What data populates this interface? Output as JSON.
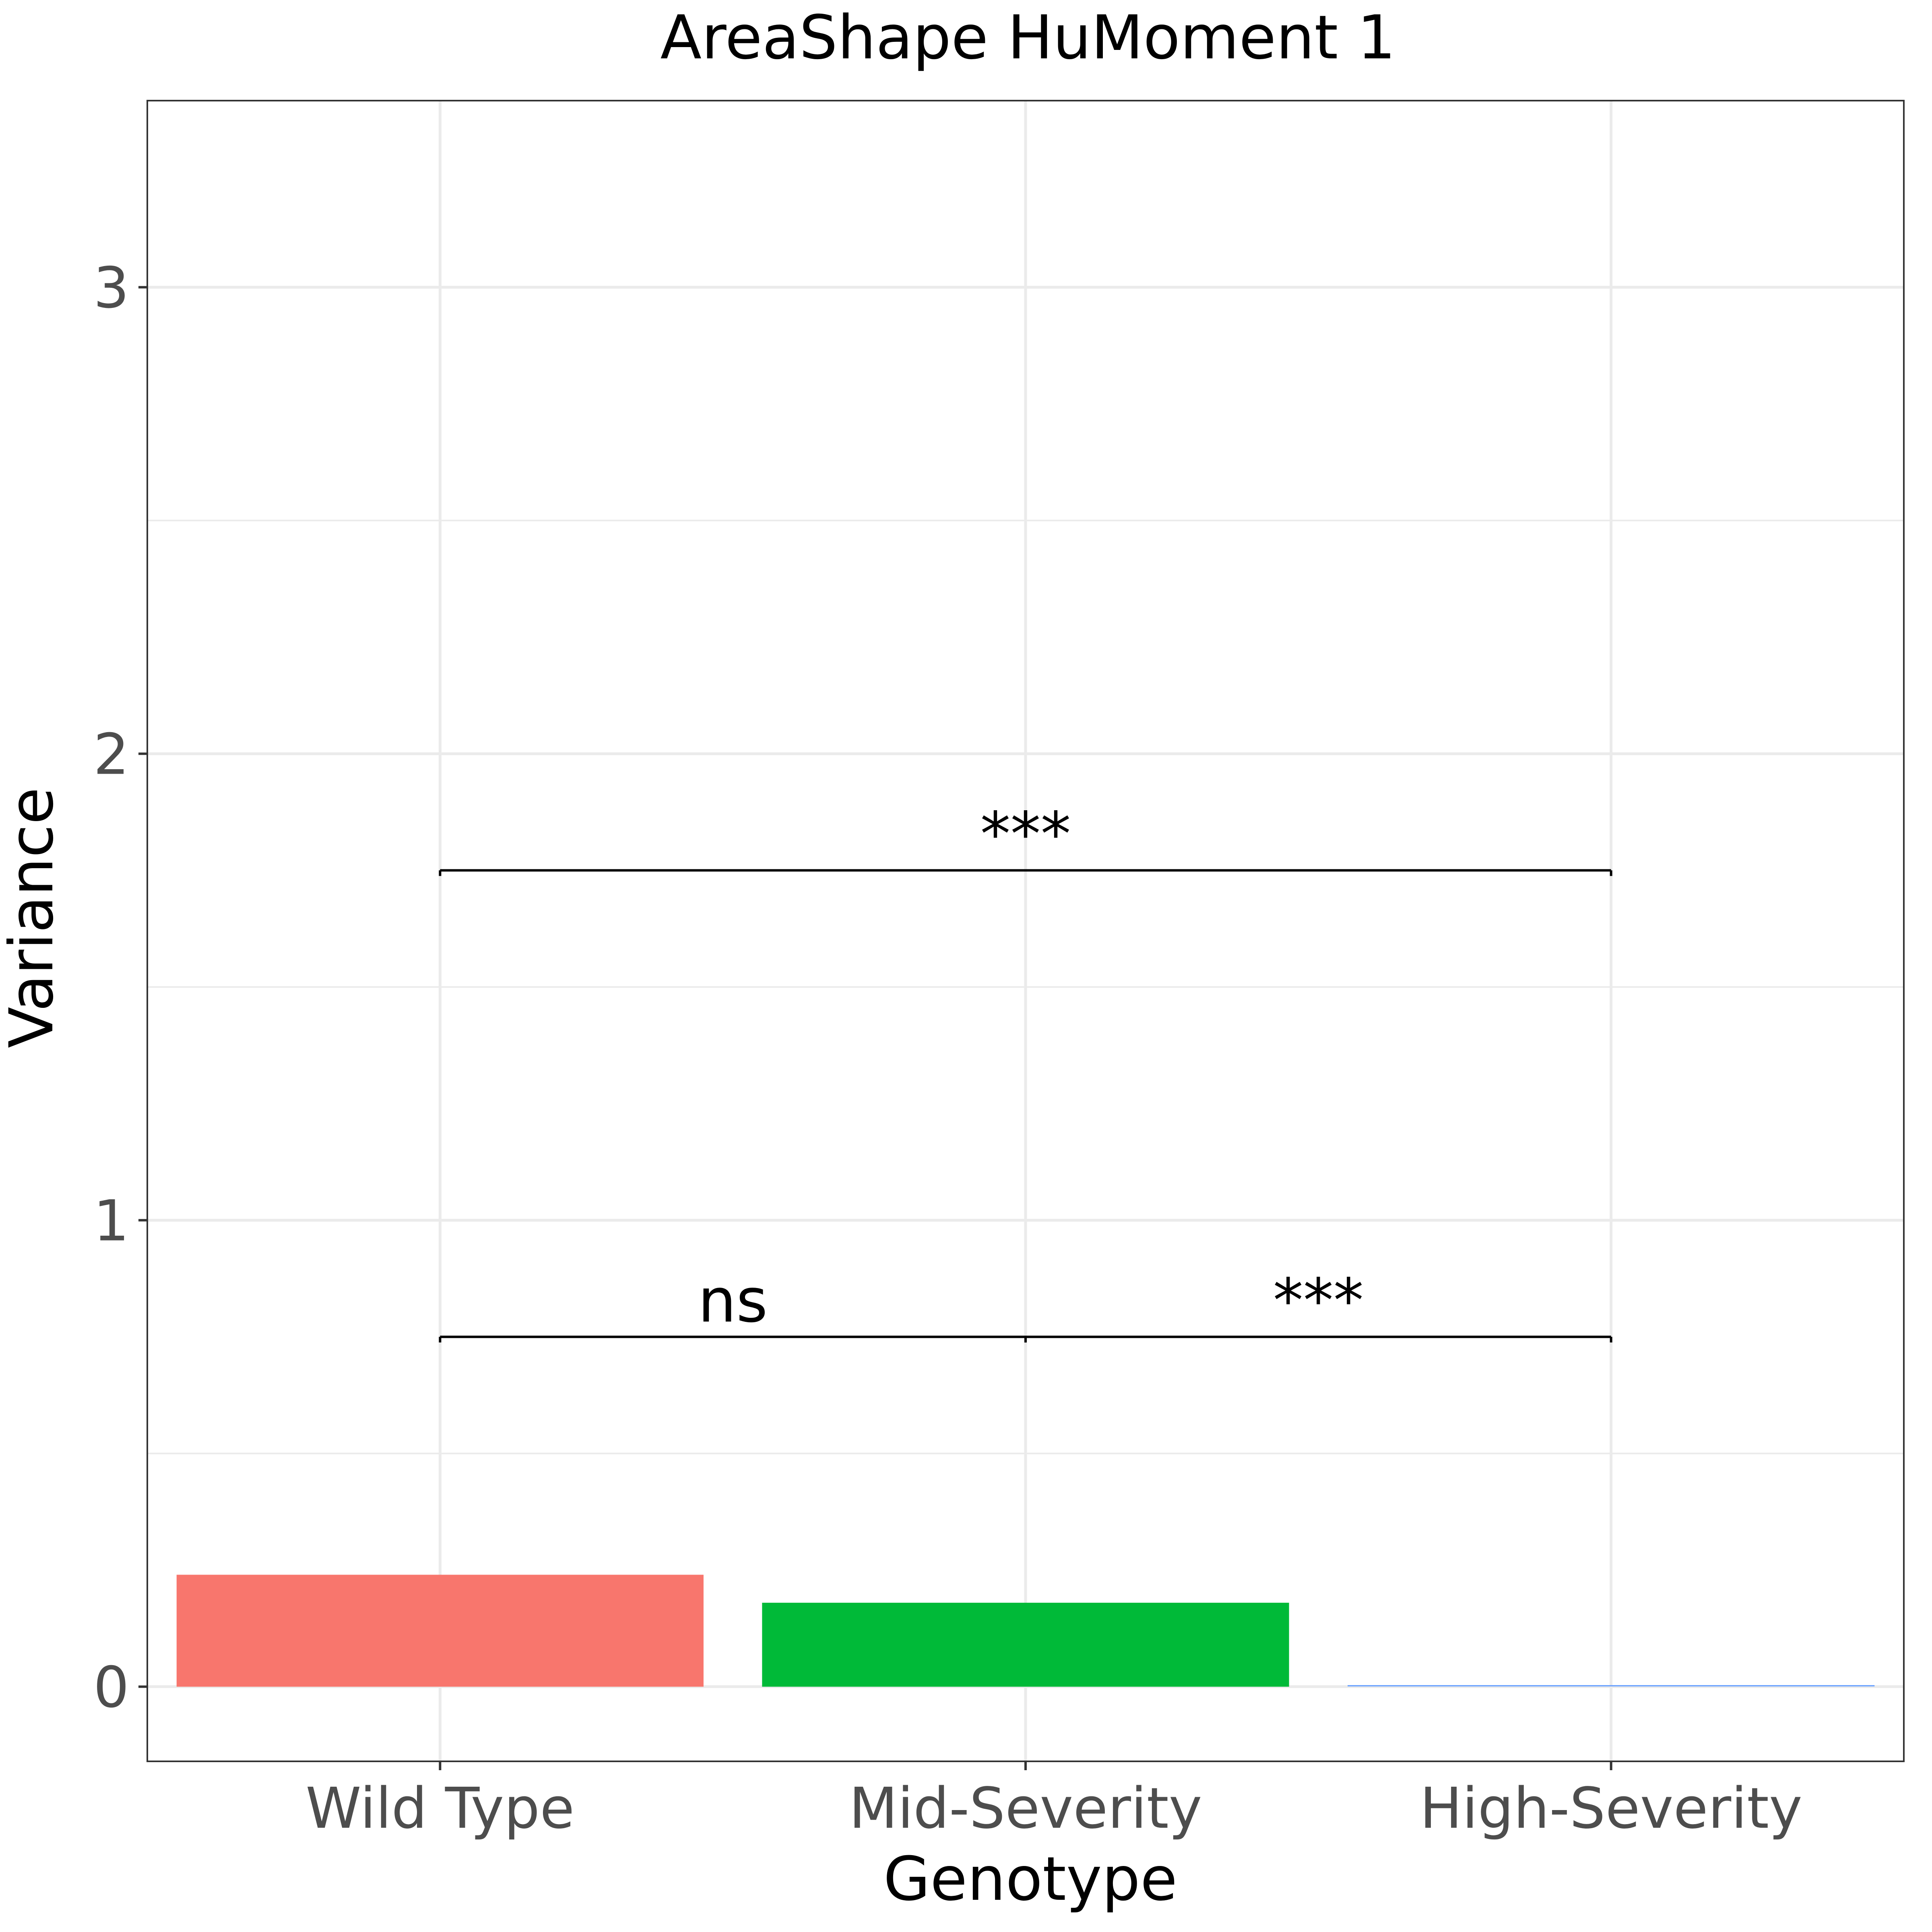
{
  "chart_data": {
    "type": "bar",
    "title": "AreaShape HuMoment 1",
    "xlabel": "Genotype",
    "ylabel": "Variance",
    "categories": [
      "Wild Type",
      "Mid-Severity",
      "High-Severity"
    ],
    "values": [
      0.24,
      0.18,
      0.002
    ],
    "colors": [
      "#f8766d",
      "#00ba38",
      "#619cff"
    ],
    "ylim": [
      -0.16,
      3.4
    ],
    "yticks": [
      0,
      1,
      2,
      3
    ],
    "grid": true,
    "legend": "none",
    "annotations": [
      {
        "from": "Wild Type",
        "to": "Mid-Severity",
        "y": 0.75,
        "label": "ns"
      },
      {
        "from": "Mid-Severity",
        "to": "High-Severity",
        "y": 0.75,
        "label": "***"
      },
      {
        "from": "Wild Type",
        "to": "High-Severity",
        "y": 1.75,
        "label": "***"
      }
    ]
  }
}
